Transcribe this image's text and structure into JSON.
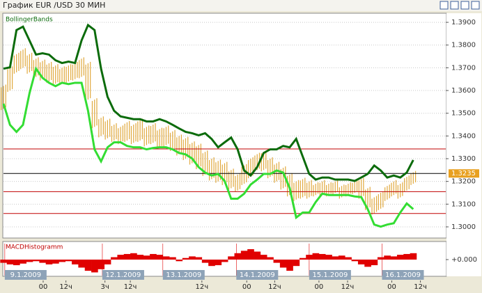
{
  "window_title": "График EUR /USD  30 МИН",
  "chart_data": [
    {
      "type": "hilo",
      "title": "BollingerBands",
      "xlim": [
        0,
        68
      ],
      "ylim": [
        1.2954,
        1.3937
      ],
      "yticks": [
        {
          "value": 1.39,
          "label": "1.3900"
        },
        {
          "value": 1.38,
          "label": "1.3800"
        },
        {
          "value": 1.37,
          "label": "1.3700"
        },
        {
          "value": 1.36,
          "label": "1.3600"
        },
        {
          "value": 1.35,
          "label": "1.3500"
        },
        {
          "value": 1.34,
          "label": "1.3400"
        },
        {
          "value": 1.33,
          "label": "1.3300"
        },
        {
          "value": 1.32,
          "label": "1.3200"
        },
        {
          "value": 1.31,
          "label": "1.3100"
        },
        {
          "value": 1.3,
          "label": "1.3000"
        }
      ],
      "grid": true,
      "bar_color": "#e0a83c",
      "high": [
        1.362,
        1.37,
        1.376,
        1.378,
        1.376,
        1.374,
        1.373,
        1.372,
        1.371,
        1.37,
        1.371,
        1.372,
        1.374,
        1.372,
        1.356,
        1.348,
        1.347,
        1.345,
        1.344,
        1.346,
        1.345,
        1.347,
        1.344,
        1.345,
        1.343,
        1.344,
        1.342,
        1.34,
        1.339,
        1.337,
        1.336,
        1.333,
        1.33,
        1.329,
        1.328,
        1.325,
        1.323,
        1.327,
        1.33,
        1.332,
        1.333,
        1.33,
        1.328,
        1.326,
        1.323,
        1.32,
        1.321,
        1.32,
        1.319,
        1.32,
        1.319,
        1.32,
        1.318,
        1.319,
        1.32,
        1.321,
        1.317,
        1.313,
        1.315,
        1.318,
        1.32,
        1.319,
        1.322,
        1.324
      ],
      "low": [
        1.352,
        1.36,
        1.368,
        1.37,
        1.368,
        1.366,
        1.365,
        1.364,
        1.363,
        1.363,
        1.364,
        1.365,
        1.366,
        1.356,
        1.344,
        1.34,
        1.339,
        1.338,
        1.337,
        1.338,
        1.337,
        1.338,
        1.336,
        1.337,
        1.335,
        1.336,
        1.334,
        1.332,
        1.33,
        1.328,
        1.326,
        1.323,
        1.321,
        1.32,
        1.319,
        1.317,
        1.316,
        1.319,
        1.322,
        1.325,
        1.325,
        1.322,
        1.32,
        1.317,
        1.314,
        1.312,
        1.313,
        1.313,
        1.314,
        1.314,
        1.314,
        1.315,
        1.313,
        1.314,
        1.315,
        1.313,
        1.308,
        1.306,
        1.308,
        1.312,
        1.314,
        1.313,
        1.316,
        1.319
      ],
      "bands": [
        {
          "color": "#0b6b0b",
          "values": [
            1.3696,
            1.3702,
            1.3866,
            1.3881,
            1.382,
            1.3758,
            1.3764,
            1.3758,
            1.3733,
            1.3721,
            1.3727,
            1.3721,
            1.382,
            1.3888,
            1.3866,
            1.3696,
            1.3572,
            1.3511,
            1.3486,
            1.348,
            1.3474,
            1.3474,
            1.3464,
            1.3464,
            1.3474,
            1.3464,
            1.3449,
            1.3433,
            1.3418,
            1.3412,
            1.3403,
            1.3412,
            1.3387,
            1.335,
            1.3372,
            1.3393,
            1.3341,
            1.3248,
            1.3226,
            1.3263,
            1.3325,
            1.3341,
            1.3341,
            1.3356,
            1.335,
            1.3387,
            1.331,
            1.3233,
            1.3208,
            1.3217,
            1.3217,
            1.3208,
            1.3208,
            1.3208,
            1.3202,
            1.3217,
            1.3233,
            1.327,
            1.3248,
            1.3217,
            1.3226,
            1.3217,
            1.3239,
            1.3294
          ]
        },
        {
          "color": "#33dd33",
          "values": [
            1.3542,
            1.3449,
            1.3418,
            1.3449,
            1.3588,
            1.3696,
            1.3656,
            1.3634,
            1.3619,
            1.3634,
            1.3628,
            1.3634,
            1.3634,
            1.3511,
            1.3341,
            1.3288,
            1.335,
            1.3372,
            1.3372,
            1.3356,
            1.335,
            1.335,
            1.3341,
            1.3347,
            1.335,
            1.335,
            1.3341,
            1.3325,
            1.3319,
            1.3301,
            1.3263,
            1.3239,
            1.3226,
            1.3233,
            1.3202,
            1.3124,
            1.3124,
            1.3146,
            1.3186,
            1.3208,
            1.3233,
            1.3233,
            1.3248,
            1.3239,
            1.3171,
            1.3041,
            1.3063,
            1.3063,
            1.3109,
            1.3146,
            1.314,
            1.314,
            1.314,
            1.314,
            1.3134,
            1.3131,
            1.3078,
            1.301,
            1.3001,
            1.301,
            1.3016,
            1.3063,
            1.3103,
            1.3078
          ]
        }
      ],
      "levels": [
        1.3343,
        1.3155,
        1.3059
      ],
      "level_color": "#c00000",
      "last_price": 1.3235,
      "last_price_color": "#e8a020"
    },
    {
      "type": "bar",
      "title": "MACDHistogramm",
      "color": "#e00000",
      "xlim": [
        0,
        68
      ],
      "ylim": [
        -0.002,
        0.002
      ],
      "yticks": [
        {
          "value": 0,
          "label": "+0.000"
        }
      ],
      "values": [
        -0.0004,
        -0.0006,
        -0.0007,
        -0.0005,
        -0.0003,
        -0.0002,
        -0.0004,
        -0.0006,
        -0.0005,
        -0.0003,
        -0.0002,
        -0.0006,
        -0.001,
        -0.0014,
        -0.0016,
        -0.0012,
        -0.0006,
        0.0003,
        0.0006,
        0.0007,
        0.0008,
        0.0006,
        0.0005,
        0.0007,
        0.0006,
        0.0004,
        0.0003,
        -0.0002,
        0.0002,
        0.0004,
        0.0003,
        -0.0004,
        -0.0008,
        -0.0007,
        -0.0003,
        0.0004,
        0.0008,
        0.0011,
        0.0013,
        0.001,
        0.0006,
        0.0003,
        -0.0004,
        -0.001,
        -0.0014,
        -0.0008,
        0.0002,
        0.0006,
        0.0008,
        0.0007,
        0.0006,
        0.0004,
        0.0005,
        0.0003,
        -0.0002,
        -0.0006,
        -0.0009,
        -0.0007,
        0.0003,
        0.0005,
        0.0004,
        0.0006,
        0.0007,
        0.0008
      ],
      "date_ticks": [
        {
          "value": 0.2,
          "label": "9.1.2009"
        },
        {
          "value": 15.2,
          "label": "12.1.2009"
        },
        {
          "value": 24.5,
          "label": "13.1.2009"
        },
        {
          "value": 35.8,
          "label": "14.1.2009"
        },
        {
          "value": 47,
          "label": "15.1.2009"
        },
        {
          "value": 58.2,
          "label": "16.1.2009"
        }
      ],
      "date_box_color": "#8ea3b8",
      "time_ticks": [
        {
          "value": 6.1,
          "label": "00"
        },
        {
          "value": 9.6,
          "label": "12ч"
        },
        {
          "value": 15.6,
          "label": "3ч"
        },
        {
          "value": 19.5,
          "label": "12ч"
        },
        {
          "value": 30.5,
          "label": "12ч"
        },
        {
          "value": 37.4,
          "label": "00"
        },
        {
          "value": 41.7,
          "label": "12ч"
        },
        {
          "value": 48.5,
          "label": "00"
        },
        {
          "value": 52.9,
          "label": "12ч"
        },
        {
          "value": 59.7,
          "label": "00"
        },
        {
          "value": 64.1,
          "label": "12ч"
        }
      ]
    }
  ]
}
